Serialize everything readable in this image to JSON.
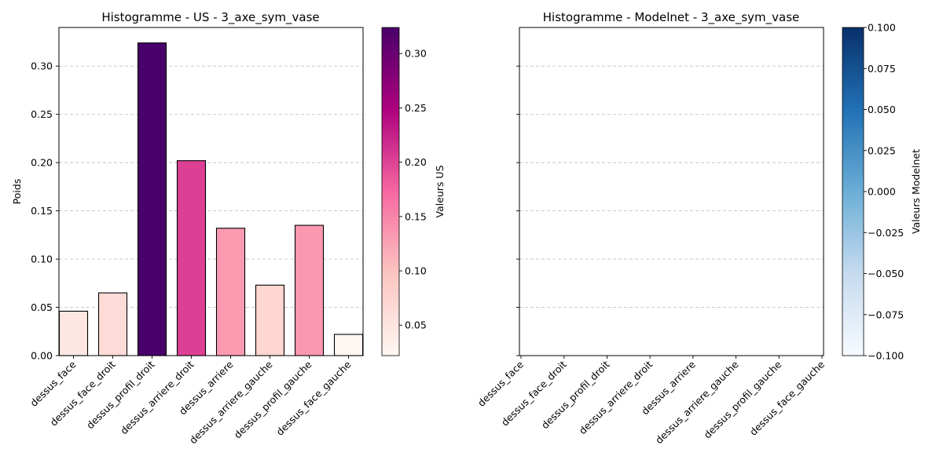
{
  "chart_data": [
    {
      "type": "bar",
      "title": "Histogramme - US - 3_axe_sym_vase",
      "ylabel": "Poids",
      "xlabel": "",
      "categories": [
        "dessus_face",
        "dessus_face_droit",
        "dessus_profil_droit",
        "dessus_arriere_droit",
        "dessus_arriere",
        "dessus_arriere_gauche",
        "dessus_profil_gauche",
        "dessus_face_gauche"
      ],
      "values": [
        0.046,
        0.065,
        0.324,
        0.202,
        0.132,
        0.073,
        0.135,
        0.022
      ],
      "ylim": [
        0,
        0.34
      ],
      "yticks": [
        "0.00",
        "0.05",
        "0.10",
        "0.15",
        "0.20",
        "0.25",
        "0.30"
      ],
      "grid": "y-dashed",
      "colormap": "RdPu",
      "bar_edge_color": "#000000",
      "colorbar": {
        "label": "Valeurs US",
        "range": [
          0.022,
          0.324
        ],
        "ticks": [
          "0.05",
          "0.10",
          "0.15",
          "0.20",
          "0.25",
          "0.30"
        ]
      }
    },
    {
      "type": "bar",
      "title": "Histogramme - Modelnet - 3_axe_sym_vase",
      "ylabel": "",
      "xlabel": "",
      "categories": [
        "dessus_face",
        "dessus_face_droit",
        "dessus_profil_droit",
        "dessus_arriere_droit",
        "dessus_arriere",
        "dessus_arriere_gauche",
        "dessus_profil_gauche",
        "dessus_face_gauche"
      ],
      "values": [
        0,
        0,
        0,
        0,
        0,
        0,
        0,
        0
      ],
      "ylim": [
        0,
        0.34
      ],
      "grid": "y-dashed",
      "colormap": "Blues",
      "colorbar": {
        "label": "Valeurs Modelnet",
        "range": [
          -0.1,
          0.1
        ],
        "ticks": [
          "0.100",
          "0.075",
          "0.050",
          "0.025",
          "0.000",
          "−0.025",
          "−0.050",
          "−0.075",
          "−0.100"
        ]
      }
    }
  ]
}
